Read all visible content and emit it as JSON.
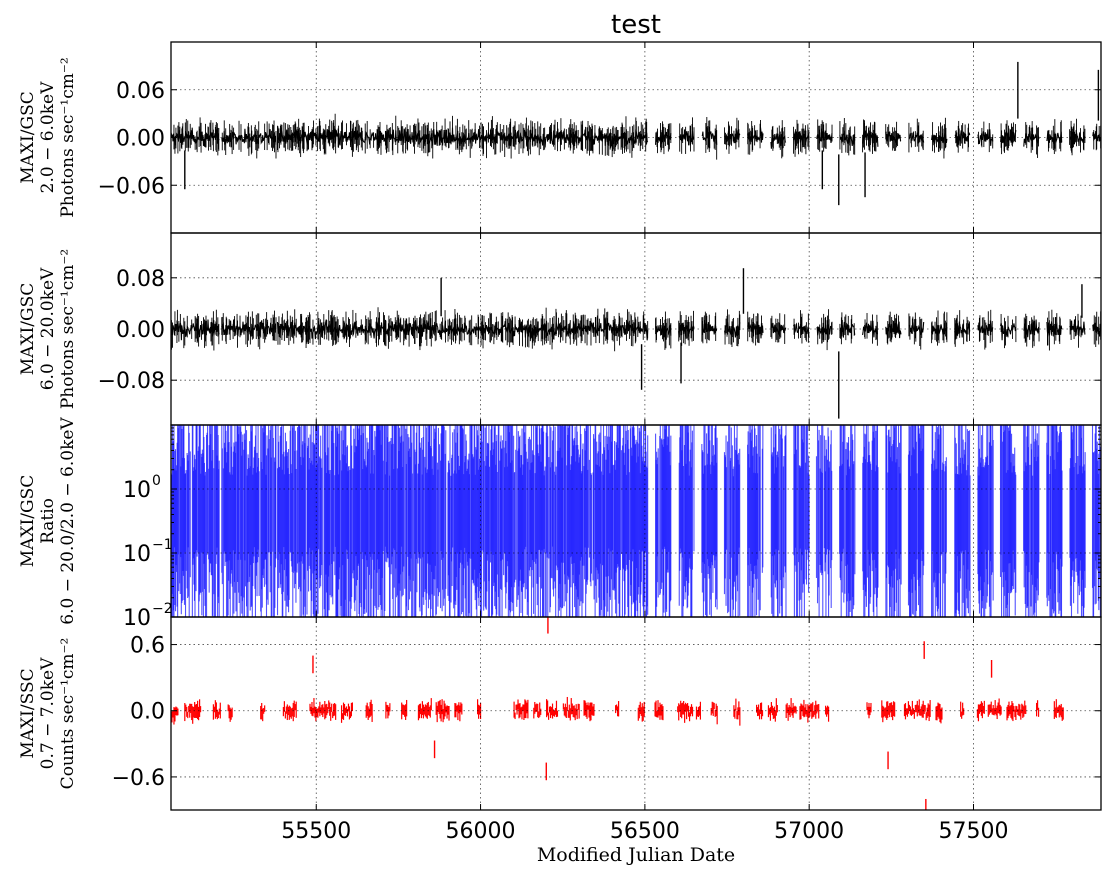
{
  "chart_data": {
    "type": "line",
    "title": "test",
    "xlabel": "Modified Julian Date",
    "xlim": [
      55058,
      57888
    ],
    "xticks": [
      55500,
      56000,
      56500,
      57000,
      57500
    ],
    "xtick_labels": [
      "55500",
      "56000",
      "56500",
      "57000",
      "57500"
    ],
    "grid": true,
    "panels": [
      {
        "id": "gsc_low",
        "ylabel": [
          "MAXI/GSC",
          "2.0 − 6.0keV",
          "Photons sec⁻¹cm⁻²"
        ],
        "ylim": [
          -0.12,
          0.12
        ],
        "yticks": [
          -0.06,
          0.0,
          0.06
        ],
        "ytick_labels": [
          "−0.06",
          "0.00",
          "0.06"
        ],
        "color": "#000000",
        "series_style": "errorbar",
        "typical_spread": 0.012,
        "notable_points": [
          {
            "x": 57090,
            "y": -0.085
          },
          {
            "x": 57170,
            "y": -0.075
          },
          {
            "x": 57635,
            "y": 0.095
          },
          {
            "x": 57880,
            "y": 0.085
          },
          {
            "x": 55100,
            "y": -0.065
          },
          {
            "x": 57040,
            "y": -0.065
          }
        ]
      },
      {
        "id": "gsc_high",
        "ylabel": [
          "MAXI/GSC",
          "6.0 − 20.0keV",
          "Photons sec⁻¹cm⁻²"
        ],
        "ylim": [
          -0.15,
          0.15
        ],
        "yticks": [
          -0.08,
          0.0,
          0.08
        ],
        "ytick_labels": [
          "−0.08",
          "0.00",
          "0.08"
        ],
        "color": "#000000",
        "series_style": "errorbar",
        "typical_spread": 0.015,
        "notable_points": [
          {
            "x": 57090,
            "y": -0.14
          },
          {
            "x": 56490,
            "y": -0.095
          },
          {
            "x": 56610,
            "y": -0.085
          },
          {
            "x": 56800,
            "y": 0.095
          },
          {
            "x": 55880,
            "y": 0.08
          },
          {
            "x": 57830,
            "y": 0.07
          }
        ]
      },
      {
        "id": "gsc_ratio",
        "ylabel": [
          "MAXI/GSC",
          "Ratio",
          "6.0 − 20.0/2.0 − 6.0keV"
        ],
        "yscale": "log",
        "ylim": [
          0.01,
          10
        ],
        "yticks": [
          0.01,
          0.1,
          1
        ],
        "ytick_labels": [
          "10",
          "10",
          "10"
        ],
        "ytick_exponents": [
          "−2",
          "−1",
          "0"
        ],
        "color": "#1a1aff",
        "series_style": "errorbar",
        "note": "dense error bars spanning most of the range; gaps after MJD 56500"
      },
      {
        "id": "ssc",
        "ylabel": [
          "MAXI/SSC",
          "0.7 − 7.0keV",
          "Counts sec⁻¹cm⁻²"
        ],
        "ylim": [
          -0.9,
          0.85
        ],
        "yticks": [
          -0.6,
          0.0,
          0.6
        ],
        "ytick_labels": [
          "−0.6",
          "0.0",
          "0.6"
        ],
        "color": "#ff0000",
        "series_style": "errorbar",
        "typical_spread": 0.05,
        "notable_points": [
          {
            "x": 56205,
            "y": 0.78
          },
          {
            "x": 56200,
            "y": -0.55
          },
          {
            "x": 57355,
            "y": -0.88
          },
          {
            "x": 57350,
            "y": 0.55
          },
          {
            "x": 57555,
            "y": 0.38
          },
          {
            "x": 55490,
            "y": 0.42
          },
          {
            "x": 55860,
            "y": -0.35
          },
          {
            "x": 57240,
            "y": -0.45
          }
        ],
        "observation_windows": [
          [
            55060,
            55080
          ],
          [
            55100,
            55150
          ],
          [
            55185,
            55210
          ],
          [
            55230,
            55245
          ],
          [
            55330,
            55345
          ],
          [
            55400,
            55440
          ],
          [
            55480,
            55560
          ],
          [
            55575,
            55610
          ],
          [
            55650,
            55670
          ],
          [
            55710,
            55725
          ],
          [
            55760,
            55775
          ],
          [
            55810,
            55850
          ],
          [
            55865,
            55905
          ],
          [
            55920,
            55945
          ],
          [
            55990,
            56000
          ],
          [
            56100,
            56145
          ],
          [
            56160,
            56185
          ],
          [
            56200,
            56235
          ],
          [
            56250,
            56300
          ],
          [
            56315,
            56345
          ],
          [
            56410,
            56420
          ],
          [
            56480,
            56500
          ],
          [
            56530,
            56555
          ],
          [
            56600,
            56645
          ],
          [
            56655,
            56670
          ],
          [
            56700,
            56720
          ],
          [
            56770,
            56790
          ],
          [
            56840,
            56860
          ],
          [
            56875,
            56905
          ],
          [
            56930,
            56960
          ],
          [
            56970,
            57030
          ],
          [
            57050,
            57060
          ],
          [
            57175,
            57190
          ],
          [
            57220,
            57260
          ],
          [
            57290,
            57370
          ],
          [
            57385,
            57405
          ],
          [
            57460,
            57470
          ],
          [
            57510,
            57535
          ],
          [
            57545,
            57585
          ],
          [
            57600,
            57660
          ],
          [
            57690,
            57700
          ],
          [
            57745,
            57775
          ]
        ]
      }
    ]
  }
}
